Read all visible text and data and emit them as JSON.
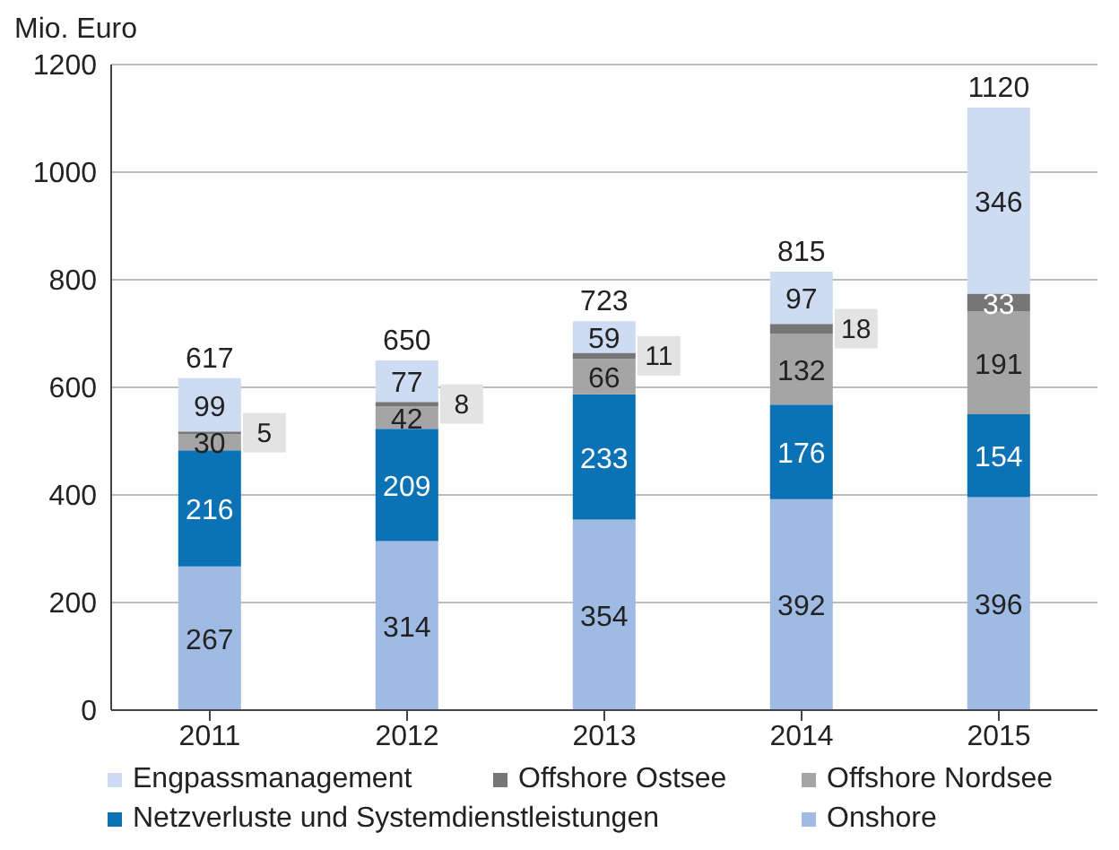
{
  "chart_data": {
    "type": "bar",
    "ylabel": "Mio. Euro",
    "categories": [
      "2011",
      "2012",
      "2013",
      "2014",
      "2015"
    ],
    "stacked": true,
    "series": [
      {
        "name": "Onshore",
        "color": "#a0bbe3",
        "values": [
          267,
          314,
          354,
          392,
          396
        ]
      },
      {
        "name": "Netzverluste und Systemdienstleistungen",
        "color": "#0a72b5",
        "values": [
          216,
          209,
          233,
          176,
          154
        ]
      },
      {
        "name": "Offshore Nordsee",
        "color": "#a5a5a5",
        "values": [
          30,
          42,
          66,
          132,
          191
        ]
      },
      {
        "name": "Offshore Ostsee",
        "color": "#767676",
        "values": [
          5,
          8,
          11,
          18,
          33
        ]
      },
      {
        "name": "Engpassmanagement",
        "color": "#cddcf3",
        "values": [
          99,
          77,
          59,
          97,
          346
        ]
      }
    ],
    "totals": [
      "617",
      "650",
      "723",
      "815",
      "1120"
    ],
    "ylim": [
      0,
      1200
    ],
    "yticks": [
      0,
      200,
      400,
      600,
      800,
      1000,
      1200
    ],
    "grid": "y",
    "legend": "bottom",
    "data_labels": true
  }
}
